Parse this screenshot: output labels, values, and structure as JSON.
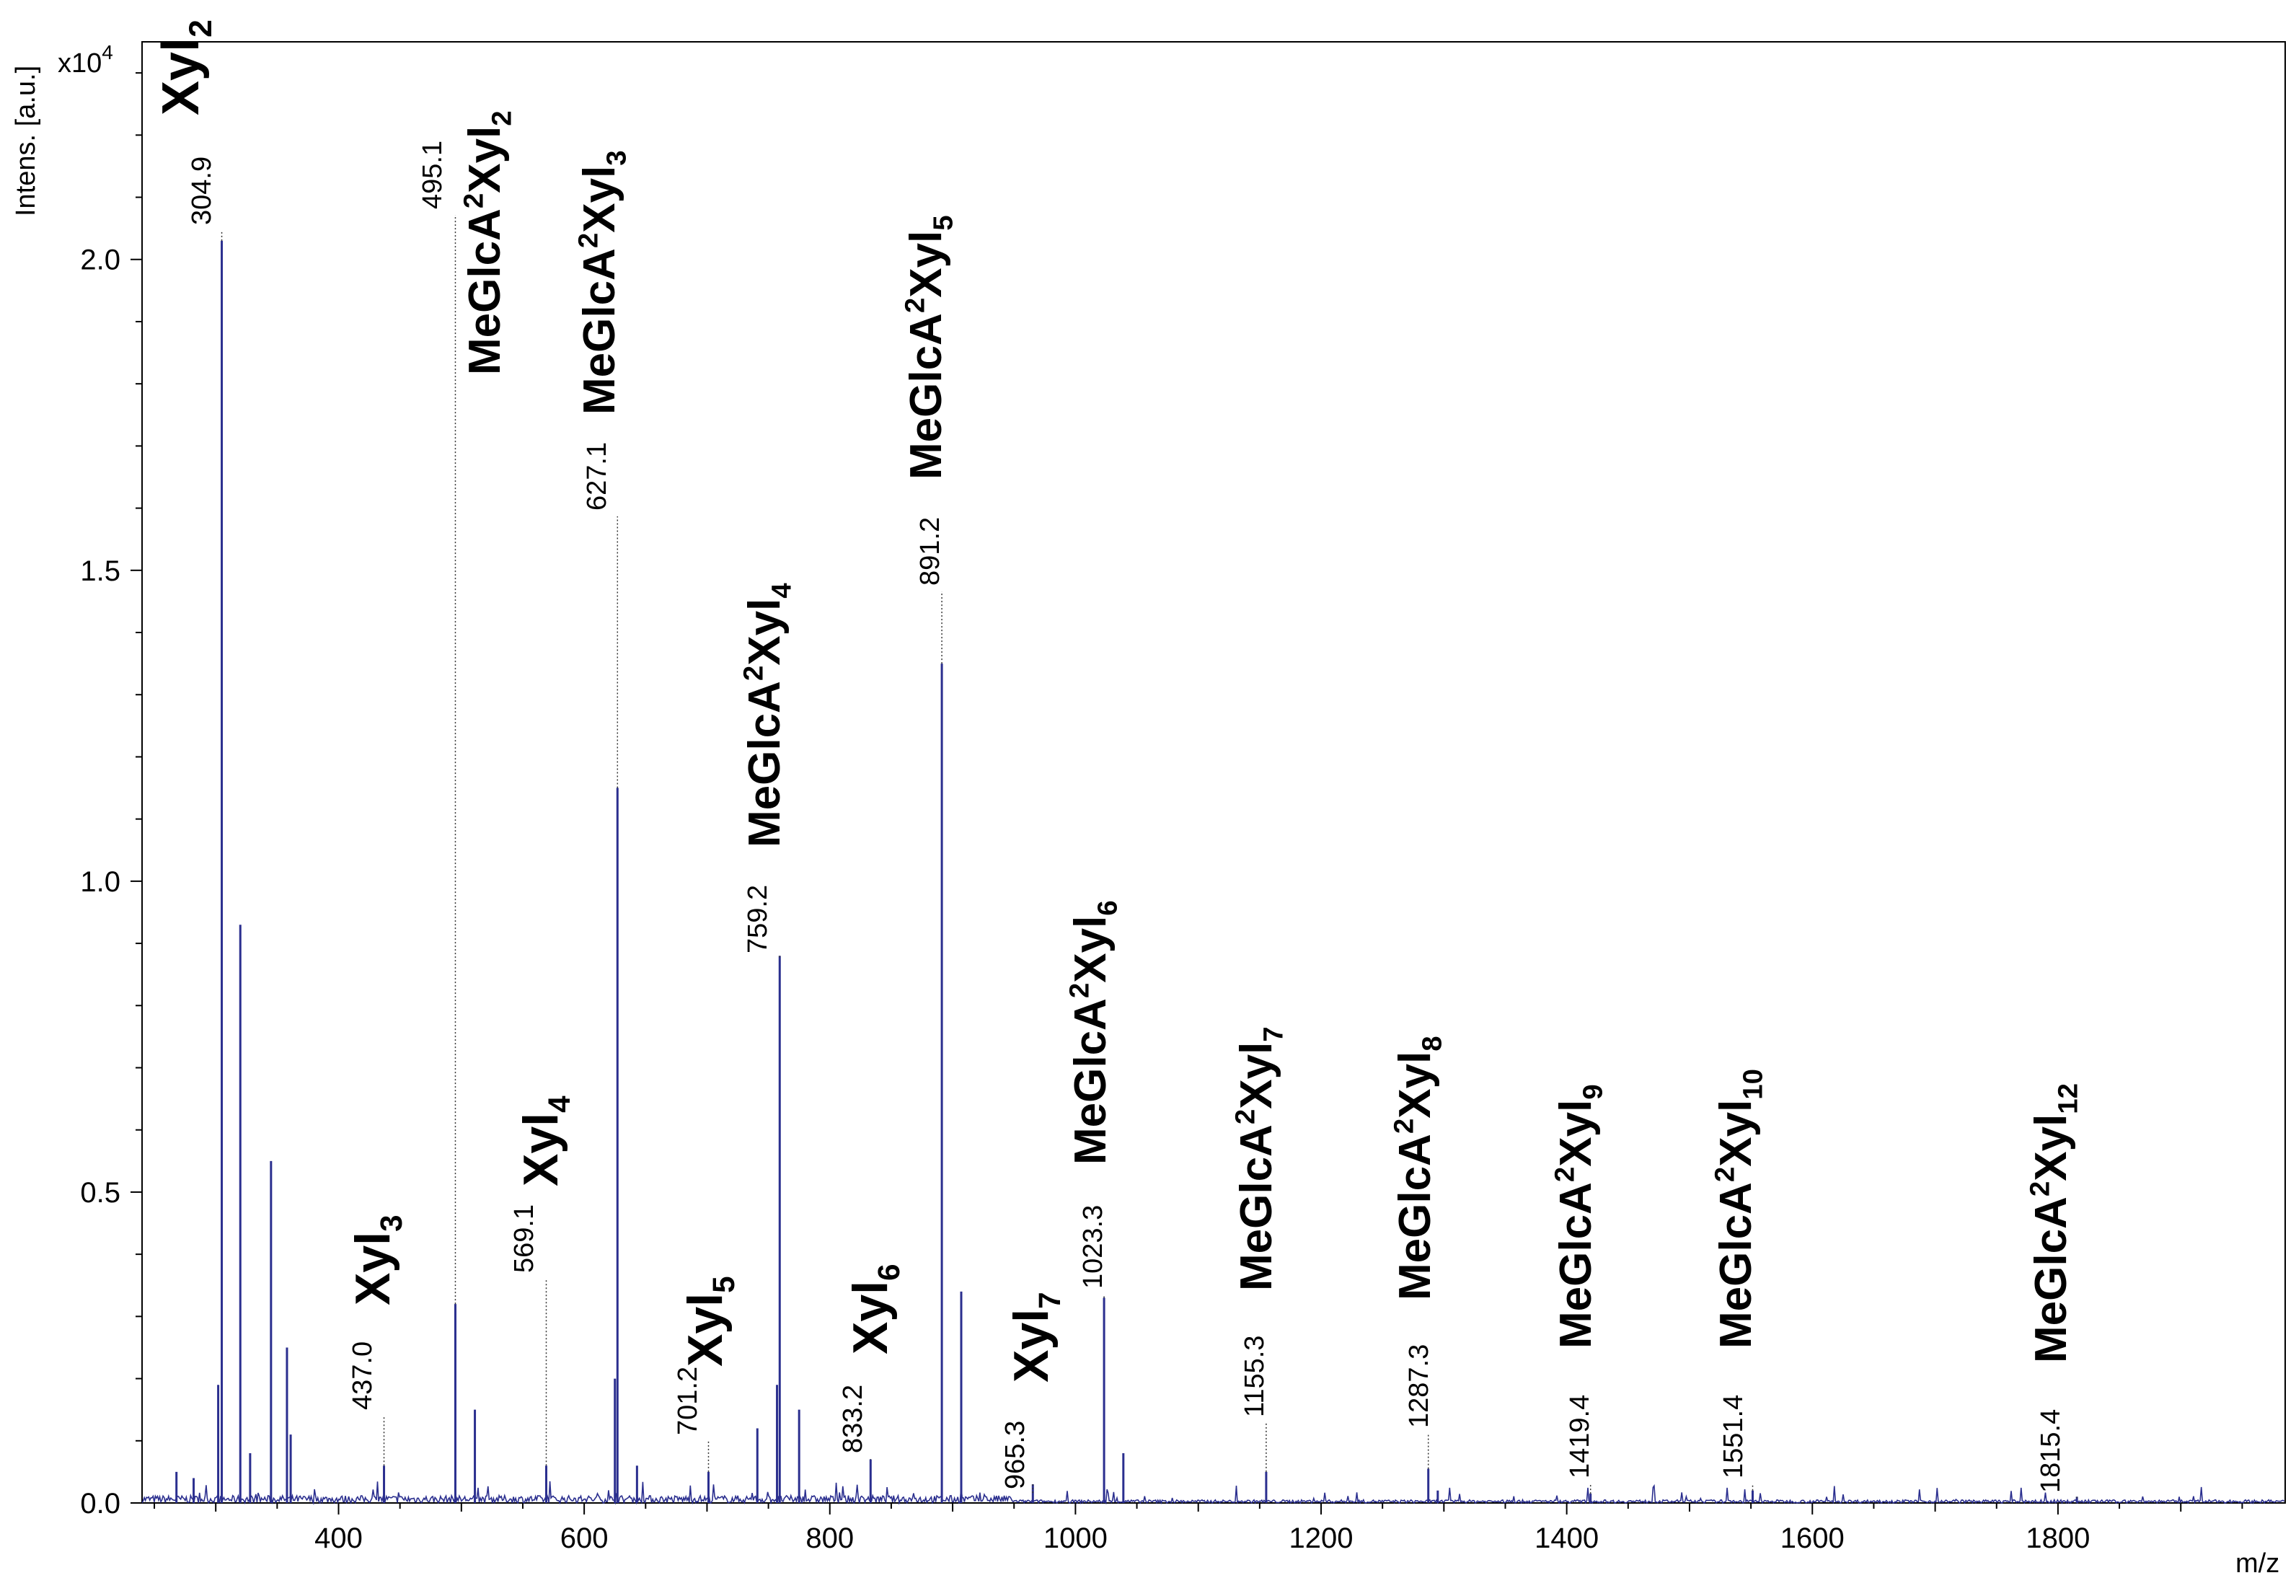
{
  "chart_data": {
    "type": "line",
    "title": "",
    "xlabel": "m/z",
    "ylabel": "Intens. [a.u.]",
    "y_multiplier": "x10",
    "y_multiplier_exp": "4",
    "xlim": [
      240,
      1985
    ],
    "ylim": [
      0,
      2.35
    ],
    "x_ticks": [
      400,
      600,
      800,
      1000,
      1200,
      1400,
      1600,
      1800
    ],
    "y_ticks": [
      0.0,
      0.5,
      1.0,
      1.5,
      2.0
    ],
    "y_tick_labels": [
      "0.0",
      "0.5",
      "1.0",
      "1.5",
      "2.0"
    ],
    "line_color": "#2b2f8f",
    "grid": false,
    "peaks": [
      {
        "mz": 304.9,
        "intensity": 2.03,
        "label": "304.9",
        "annotation": {
          "base": "Xyl",
          "sub": "2",
          "prefix": ""
        }
      },
      {
        "mz": 437.0,
        "intensity": 0.06,
        "label": "437.0",
        "annotation": {
          "base": "Xyl",
          "sub": "3",
          "prefix": ""
        }
      },
      {
        "mz": 495.1,
        "intensity": 0.32,
        "label": "495.1",
        "annotation": {
          "base": "Xyl",
          "sub": "2",
          "prefix": "MeGlcA"
        }
      },
      {
        "mz": 569.1,
        "intensity": 0.06,
        "label": "569.1",
        "annotation": {
          "base": "Xyl",
          "sub": "4",
          "prefix": ""
        }
      },
      {
        "mz": 627.1,
        "intensity": 1.15,
        "label": "627.1",
        "annotation": {
          "base": "Xyl",
          "sub": "3",
          "prefix": "MeGlcA"
        }
      },
      {
        "mz": 701.2,
        "intensity": 0.05,
        "label": "701.2",
        "annotation": {
          "base": "Xyl",
          "sub": "5",
          "prefix": ""
        }
      },
      {
        "mz": 759.2,
        "intensity": 0.88,
        "label": "759.2",
        "annotation": {
          "base": "Xyl",
          "sub": "4",
          "prefix": "MeGlcA"
        }
      },
      {
        "mz": 833.2,
        "intensity": 0.07,
        "label": "833.2",
        "annotation": {
          "base": "Xyl",
          "sub": "6",
          "prefix": ""
        }
      },
      {
        "mz": 891.2,
        "intensity": 1.35,
        "label": "891.2",
        "annotation": {
          "base": "Xyl",
          "sub": "5",
          "prefix": "MeGlcA"
        }
      },
      {
        "mz": 965.3,
        "intensity": 0.03,
        "label": "965.3",
        "annotation": {
          "base": "Xyl",
          "sub": "7",
          "prefix": ""
        }
      },
      {
        "mz": 1023.3,
        "intensity": 0.33,
        "label": "1023.3",
        "annotation": {
          "base": "Xyl",
          "sub": "6",
          "prefix": "MeGlcA"
        }
      },
      {
        "mz": 1155.3,
        "intensity": 0.05,
        "label": "1155.3",
        "annotation": {
          "base": "Xyl",
          "sub": "7",
          "prefix": "MeGlcA"
        }
      },
      {
        "mz": 1287.3,
        "intensity": 0.055,
        "label": "1287.3",
        "annotation": {
          "base": "Xyl",
          "sub": "8",
          "prefix": "MeGlcA"
        }
      },
      {
        "mz": 1419.4,
        "intensity": 0.015,
        "label": "1419.4",
        "annotation": {
          "base": "Xyl",
          "sub": "9",
          "prefix": "MeGlcA"
        }
      },
      {
        "mz": 1551.4,
        "intensity": 0.02,
        "label": "1551.4",
        "annotation": {
          "base": "Xyl",
          "sub": "10",
          "prefix": "MeGlcA"
        }
      },
      {
        "mz": 1815.4,
        "intensity": 0.01,
        "label": "1815.4",
        "annotation": {
          "base": "Xyl",
          "sub": "12",
          "prefix": "MeGlcA"
        }
      }
    ],
    "unlabeled_peaks": [
      {
        "mz": 302,
        "intensity": 0.19
      },
      {
        "mz": 320,
        "intensity": 0.93
      },
      {
        "mz": 328,
        "intensity": 0.08
      },
      {
        "mz": 345,
        "intensity": 0.55
      },
      {
        "mz": 358,
        "intensity": 0.25
      },
      {
        "mz": 361,
        "intensity": 0.11
      },
      {
        "mz": 268,
        "intensity": 0.05
      },
      {
        "mz": 282,
        "intensity": 0.04
      },
      {
        "mz": 511,
        "intensity": 0.15
      },
      {
        "mz": 625,
        "intensity": 0.2
      },
      {
        "mz": 643,
        "intensity": 0.06
      },
      {
        "mz": 741,
        "intensity": 0.12
      },
      {
        "mz": 757,
        "intensity": 0.19
      },
      {
        "mz": 775,
        "intensity": 0.15
      },
      {
        "mz": 907,
        "intensity": 0.34
      },
      {
        "mz": 1039,
        "intensity": 0.08
      },
      {
        "mz": 1295,
        "intensity": 0.02
      }
    ]
  }
}
